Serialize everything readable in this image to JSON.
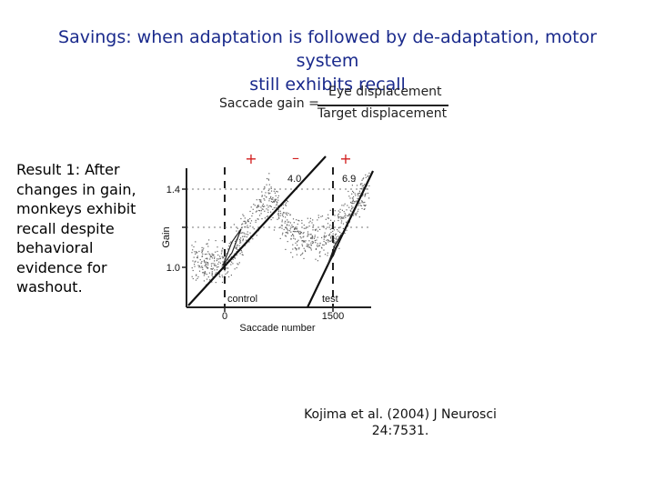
{
  "slide": {
    "title_line1": "Savings: when adaptation is followed by de-adaptation, motor system",
    "title_line2": "still exhibits recall",
    "title_color": "#1a2a8c"
  },
  "formula": {
    "lhs": "Saccade gain =",
    "numerator": "Eye displacement",
    "denominator": "Target displacement"
  },
  "result": {
    "text": "Result 1: After changes in gain, monkeys exhibit recall despite behavioral evidence for washout."
  },
  "figure": {
    "signs": [
      "+",
      "–",
      "+"
    ],
    "sign_color": "#d21e1e",
    "ylabel": "Gain",
    "xlabel": "Saccade number",
    "y_ticks": [
      "1.4",
      "1.0"
    ],
    "x_ticks": [
      "0",
      "1500"
    ],
    "slope_labels": [
      "4.0",
      "6.9"
    ],
    "phase_labels": [
      "control",
      "test"
    ]
  },
  "citation": {
    "line1": "Kojima et al. (2004) J Neurosci",
    "line2": "24:7531."
  }
}
